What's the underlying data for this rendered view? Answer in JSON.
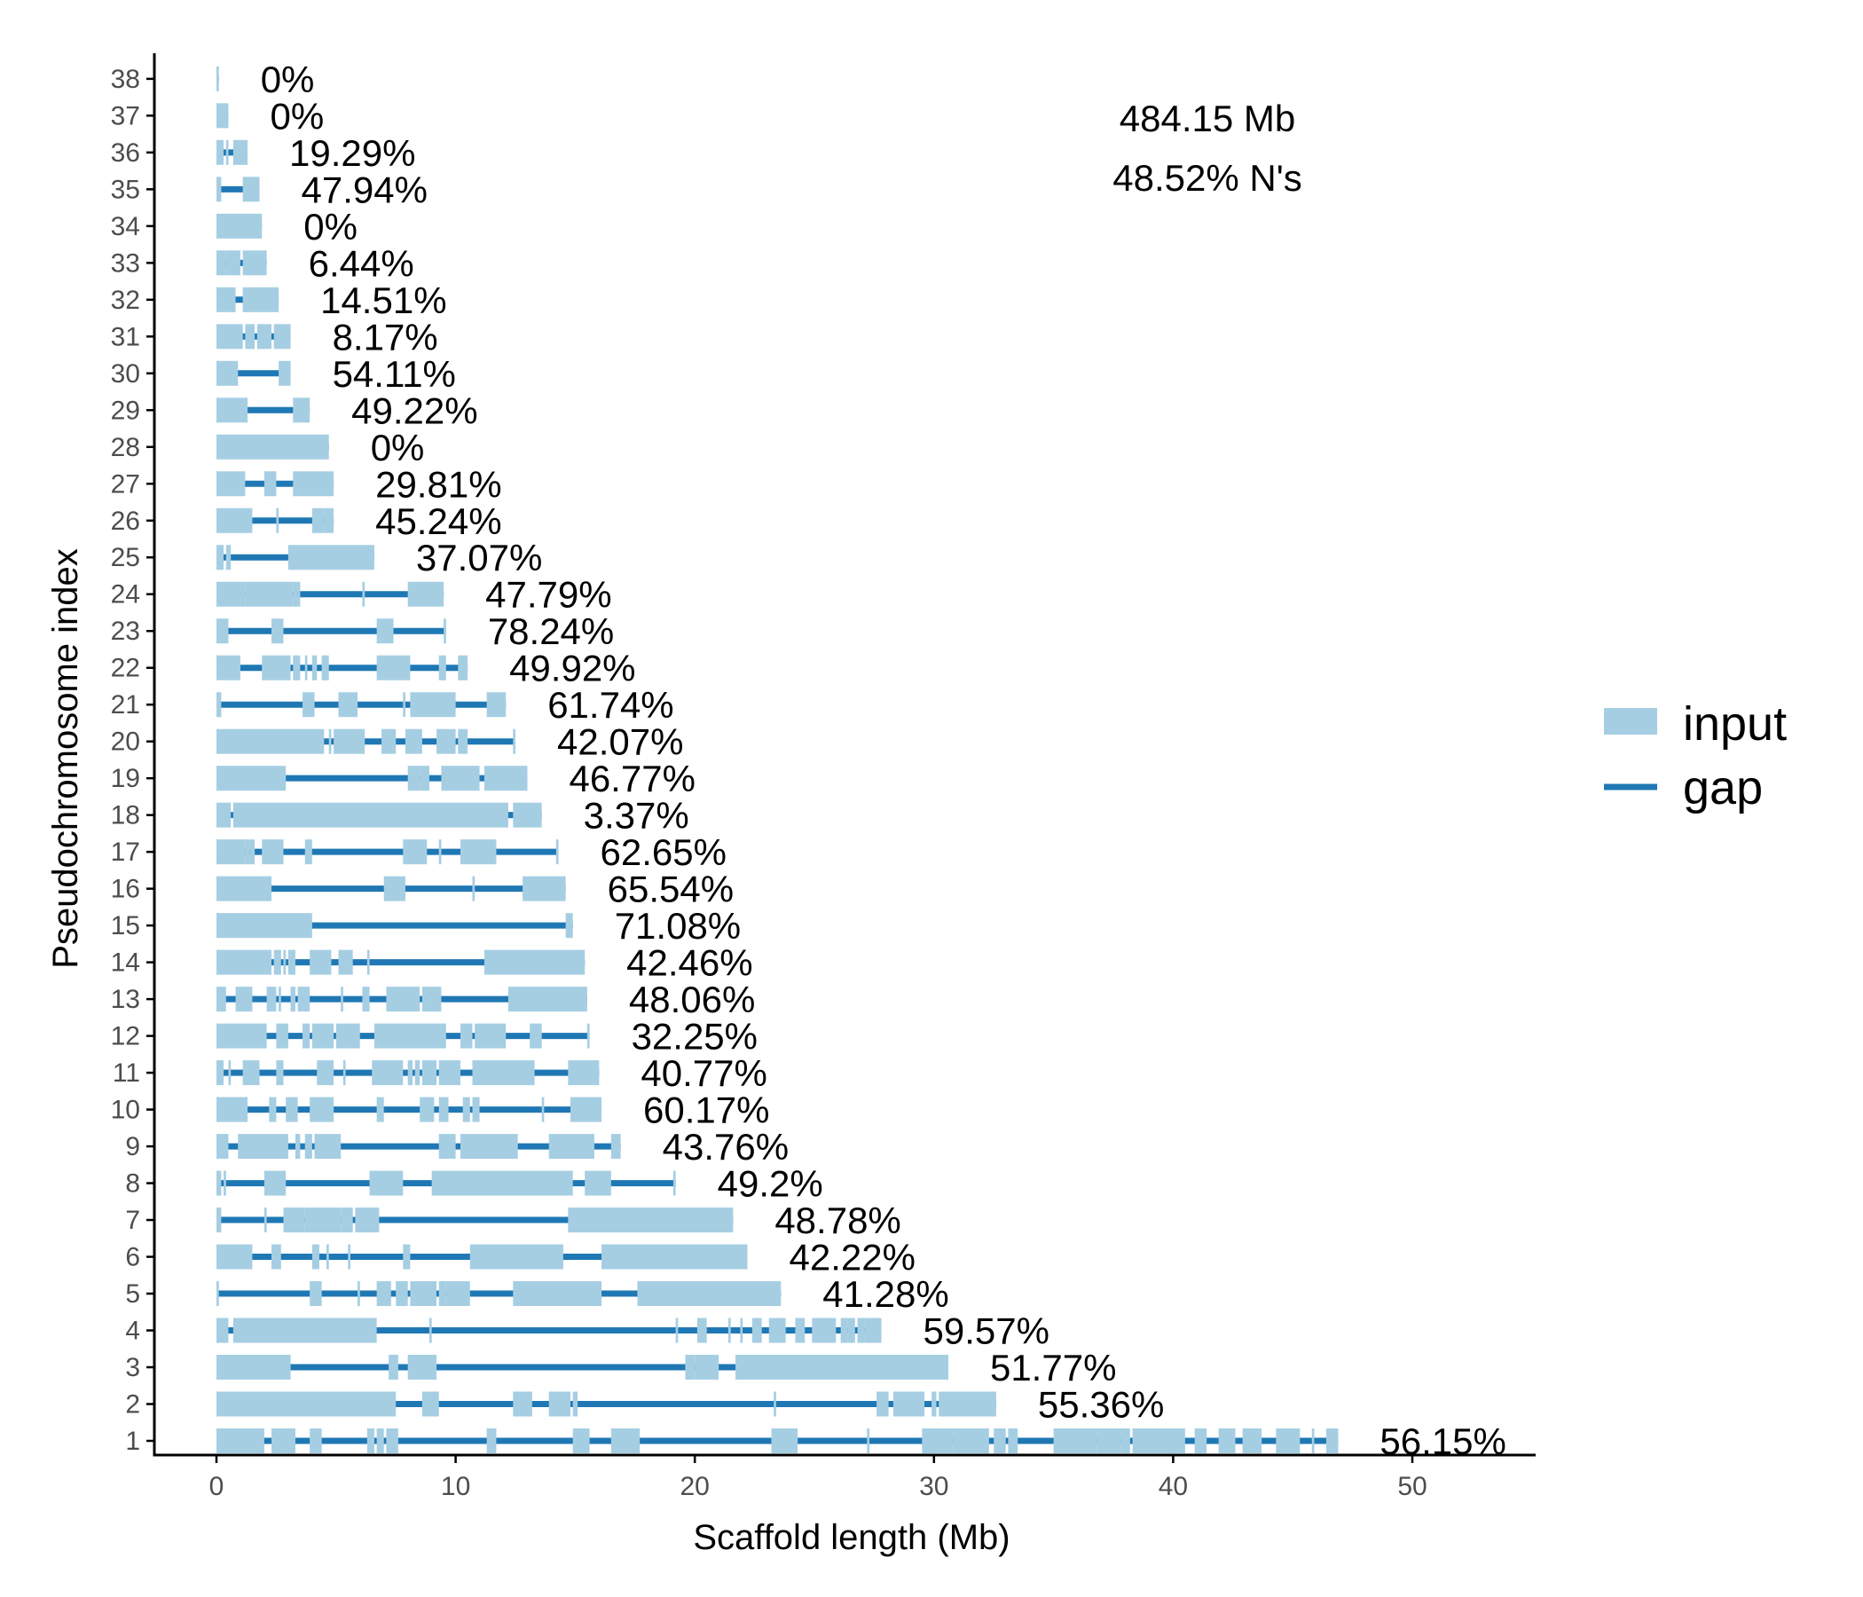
{
  "chart_data": {
    "type": "bar",
    "orientation": "horizontal",
    "xlabel": "Scaffold length (Mb)",
    "ylabel": "Pseudochromosome index",
    "xlim": [
      0,
      55
    ],
    "x_ticks": [
      0,
      10,
      20,
      30,
      40,
      50
    ],
    "grid": false,
    "legend_position": "right",
    "summary": [
      "484.15 Mb",
      "48.52% N's"
    ],
    "colors": {
      "input": "#a6cee3",
      "gap": "#1f78b4"
    },
    "series": [
      {
        "name": "input",
        "color": "#a6cee3",
        "mark": "box"
      },
      {
        "name": "gap",
        "color": "#1f78b4",
        "mark": "line"
      }
    ],
    "scaffolds": [
      {
        "index": "1",
        "length": 46.9,
        "gap_pct": "56.15%",
        "inputs": [
          [
            0,
            2
          ],
          [
            2.3,
            3.3
          ],
          [
            3.9,
            4.4
          ],
          [
            6.3,
            6.6
          ],
          [
            6.7,
            7
          ],
          [
            7.1,
            7.6
          ],
          [
            11.3,
            11.7
          ],
          [
            14.9,
            15.6
          ],
          [
            16.5,
            17.7
          ],
          [
            23.2,
            24.3
          ],
          [
            27.2,
            27.3
          ],
          [
            29.5,
            30.8
          ],
          [
            30.8,
            32.3
          ],
          [
            32.5,
            33
          ],
          [
            33.1,
            33.5
          ],
          [
            35,
            36.8
          ],
          [
            36.8,
            37.8
          ],
          [
            37.8,
            38.2
          ],
          [
            38.3,
            40.5
          ],
          [
            40.9,
            41.4
          ],
          [
            41.9,
            42.6
          ],
          [
            42.9,
            43.7
          ],
          [
            44.3,
            45.3
          ],
          [
            45.8,
            45.9
          ],
          [
            46.4,
            46.9
          ]
        ]
      },
      {
        "index": "2",
        "length": 32.6,
        "gap_pct": "55.36%",
        "inputs": [
          [
            0,
            7.5
          ],
          [
            8.6,
            9.3
          ],
          [
            12.4,
            13.2
          ],
          [
            13.9,
            14.8
          ],
          [
            14.9,
            15.1
          ],
          [
            23.3,
            23.4
          ],
          [
            27.6,
            28.1
          ],
          [
            28.3,
            29.6
          ],
          [
            29.9,
            30.1
          ],
          [
            30.2,
            32.6
          ]
        ]
      },
      {
        "index": "3",
        "length": 30.6,
        "gap_pct": "51.77%",
        "inputs": [
          [
            0,
            3.1
          ],
          [
            7.2,
            7.6
          ],
          [
            8,
            9.2
          ],
          [
            19.6,
            20
          ],
          [
            20,
            21
          ],
          [
            21.7,
            30.6
          ]
        ]
      },
      {
        "index": "4",
        "length": 27.8,
        "gap_pct": "59.57%",
        "inputs": [
          [
            0,
            0.5
          ],
          [
            0.7,
            6.7
          ],
          [
            8.9,
            9
          ],
          [
            19.2,
            19.3
          ],
          [
            20.1,
            20.5
          ],
          [
            21.4,
            21.5
          ],
          [
            21.9,
            22
          ],
          [
            22.4,
            22.8
          ],
          [
            23.1,
            23.8
          ],
          [
            24.2,
            24.6
          ],
          [
            24.9,
            25.9
          ],
          [
            26.1,
            26.4
          ],
          [
            26.4,
            26.7
          ],
          [
            26.8,
            27.1
          ],
          [
            27.1,
            27.8
          ]
        ]
      },
      {
        "index": "5",
        "length": 23.6,
        "gap_pct": "41.28%",
        "inputs": [
          [
            0,
            0.1
          ],
          [
            3.9,
            4.4
          ],
          [
            5.9,
            6
          ],
          [
            6.7,
            7.3
          ],
          [
            7.5,
            8
          ],
          [
            8.1,
            9.2
          ],
          [
            9.3,
            9.6
          ],
          [
            9.6,
            10.6
          ],
          [
            12.4,
            14.8
          ],
          [
            14.8,
            16.1
          ],
          [
            17.6,
            23.6
          ]
        ]
      },
      {
        "index": "6",
        "length": 22.2,
        "gap_pct": "42.22%",
        "inputs": [
          [
            0,
            1.5
          ],
          [
            2.3,
            2.7
          ],
          [
            4,
            4.3
          ],
          [
            4.6,
            4.7
          ],
          [
            5.5,
            5.6
          ],
          [
            7.8,
            8.1
          ],
          [
            10.6,
            14.5
          ],
          [
            16.1,
            22.2
          ]
        ]
      },
      {
        "index": "7",
        "length": 21.6,
        "gap_pct": "48.78%",
        "inputs": [
          [
            0,
            0.2
          ],
          [
            2,
            2.1
          ],
          [
            2.8,
            3.7
          ],
          [
            3.7,
            5.2
          ],
          [
            5.2,
            5.7
          ],
          [
            5.8,
            6.8
          ],
          [
            14.7,
            21.6
          ]
        ]
      },
      {
        "index": "8",
        "length": 19.2,
        "gap_pct": "49.2%",
        "inputs": [
          [
            0,
            0.2
          ],
          [
            0.3,
            0.4
          ],
          [
            2,
            2.9
          ],
          [
            6.4,
            7.8
          ],
          [
            9,
            14.9
          ],
          [
            15.4,
            16.5
          ],
          [
            19.1,
            19.2
          ]
        ]
      },
      {
        "index": "9",
        "length": 16.9,
        "gap_pct": "43.76%",
        "inputs": [
          [
            0,
            0.5
          ],
          [
            0.9,
            3
          ],
          [
            3.3,
            3.5
          ],
          [
            3.7,
            4
          ],
          [
            4.1,
            5.2
          ],
          [
            9.3,
            10
          ],
          [
            10.2,
            12.6
          ],
          [
            13.9,
            15.8
          ],
          [
            16.5,
            16.9
          ]
        ]
      },
      {
        "index": "10",
        "length": 16.1,
        "gap_pct": "60.17%",
        "inputs": [
          [
            0,
            1.3
          ],
          [
            2.2,
            2.5
          ],
          [
            2.9,
            3.4
          ],
          [
            3.9,
            4.9
          ],
          [
            6.7,
            7
          ],
          [
            8.5,
            9.1
          ],
          [
            9.3,
            9.7
          ],
          [
            10.3,
            10.6
          ],
          [
            10.7,
            11
          ],
          [
            13.6,
            13.7
          ],
          [
            14.8,
            16.1
          ]
        ]
      },
      {
        "index": "11",
        "length": 16,
        "gap_pct": "40.77%",
        "inputs": [
          [
            0,
            0.3
          ],
          [
            0.5,
            0.6
          ],
          [
            1.1,
            1.8
          ],
          [
            2.5,
            2.8
          ],
          [
            4.2,
            4.9
          ],
          [
            5.3,
            5.4
          ],
          [
            6.5,
            7.8
          ],
          [
            8,
            8.2
          ],
          [
            8.3,
            8.5
          ],
          [
            8.6,
            9.2
          ],
          [
            9.3,
            10.2
          ],
          [
            10.7,
            13.3
          ],
          [
            14.7,
            16
          ]
        ]
      },
      {
        "index": "12",
        "length": 15.6,
        "gap_pct": "32.25%",
        "inputs": [
          [
            0,
            2.1
          ],
          [
            2.5,
            3
          ],
          [
            3.6,
            3.9
          ],
          [
            4,
            4.9
          ],
          [
            5,
            6
          ],
          [
            6.6,
            9.6
          ],
          [
            10.2,
            10.7
          ],
          [
            10.8,
            12.1
          ],
          [
            13.1,
            13.6
          ],
          [
            15.5,
            15.6
          ]
        ]
      },
      {
        "index": "13",
        "length": 15.5,
        "gap_pct": "48.06%",
        "inputs": [
          [
            0,
            0.4
          ],
          [
            0.8,
            1.5
          ],
          [
            2.1,
            2.5
          ],
          [
            2.6,
            2.7
          ],
          [
            3.1,
            3.3
          ],
          [
            3.4,
            3.6
          ],
          [
            3.6,
            3.8
          ],
          [
            3.8,
            3.9
          ],
          [
            5.2,
            5.3
          ],
          [
            6.1,
            6.4
          ],
          [
            7.1,
            8.5
          ],
          [
            8.6,
            8.7
          ],
          [
            8.7,
            9.4
          ],
          [
            12.2,
            15.5
          ]
        ]
      },
      {
        "index": "14",
        "length": 15.4,
        "gap_pct": "42.46%",
        "inputs": [
          [
            0,
            2.3
          ],
          [
            2.4,
            2.7
          ],
          [
            2.8,
            2.9
          ],
          [
            3,
            3.3
          ],
          [
            3.9,
            4.8
          ],
          [
            5.1,
            5.7
          ],
          [
            6.3,
            6.4
          ],
          [
            11.2,
            15.4
          ]
        ]
      },
      {
        "index": "15",
        "length": 14.9,
        "gap_pct": "71.08%",
        "inputs": [
          [
            0,
            4
          ],
          [
            14.6,
            14.9
          ]
        ]
      },
      {
        "index": "16",
        "length": 14.6,
        "gap_pct": "65.54%",
        "inputs": [
          [
            0,
            2.3
          ],
          [
            7,
            7.9
          ],
          [
            10.7,
            10.8
          ],
          [
            12.8,
            14.6
          ]
        ]
      },
      {
        "index": "17",
        "length": 14.3,
        "gap_pct": "62.65%",
        "inputs": [
          [
            0,
            1.2
          ],
          [
            1.2,
            1.4
          ],
          [
            1.4,
            1.6
          ],
          [
            1.9,
            2.8
          ],
          [
            3.7,
            4
          ],
          [
            7.8,
            8.8
          ],
          [
            9.3,
            9.4
          ],
          [
            10.2,
            11.7
          ],
          [
            14.2,
            14.3
          ]
        ]
      },
      {
        "index": "18",
        "length": 13.6,
        "gap_pct": "3.37%",
        "inputs": [
          [
            0,
            0.6
          ],
          [
            0.7,
            12.2
          ],
          [
            12.4,
            13.6
          ]
        ]
      },
      {
        "index": "19",
        "length": 13,
        "gap_pct": "46.77%",
        "inputs": [
          [
            0,
            2.9
          ],
          [
            8,
            8.5
          ],
          [
            8.5,
            8.9
          ],
          [
            9.4,
            11
          ],
          [
            11.2,
            13
          ]
        ]
      },
      {
        "index": "20",
        "length": 12.5,
        "gap_pct": "42.07%",
        "inputs": [
          [
            0,
            4.5
          ],
          [
            4.7,
            4.8
          ],
          [
            4.9,
            6.2
          ],
          [
            6.9,
            7.5
          ],
          [
            7.9,
            8.6
          ],
          [
            9.2,
            10
          ],
          [
            10.1,
            10.5
          ],
          [
            12.4,
            12.5
          ]
        ]
      },
      {
        "index": "21",
        "length": 12.1,
        "gap_pct": "61.74%",
        "inputs": [
          [
            0,
            0.2
          ],
          [
            3.6,
            4.1
          ],
          [
            5.1,
            5.9
          ],
          [
            7.8,
            7.9
          ],
          [
            8.1,
            10
          ],
          [
            11.3,
            12.1
          ]
        ]
      },
      {
        "index": "22",
        "length": 10.5,
        "gap_pct": "49.92%",
        "inputs": [
          [
            0,
            1
          ],
          [
            1.9,
            3.1
          ],
          [
            3.2,
            3.5
          ],
          [
            3.7,
            3.8
          ],
          [
            4,
            4.2
          ],
          [
            4.4,
            4.7
          ],
          [
            6.7,
            8.1
          ],
          [
            9.3,
            9.6
          ],
          [
            10.1,
            10.5
          ]
        ]
      },
      {
        "index": "23",
        "length": 9.6,
        "gap_pct": "78.24%",
        "inputs": [
          [
            0,
            0.5
          ],
          [
            2.3,
            2.8
          ],
          [
            6.7,
            7.4
          ],
          [
            9.5,
            9.6
          ]
        ]
      },
      {
        "index": "24",
        "length": 9.5,
        "gap_pct": "47.79%",
        "inputs": [
          [
            0,
            1.2
          ],
          [
            1.2,
            3.2
          ],
          [
            3.2,
            3.4
          ],
          [
            3.4,
            3.5
          ],
          [
            6.1,
            6.2
          ],
          [
            8,
            9.5
          ]
        ]
      },
      {
        "index": "25",
        "length": 6.6,
        "gap_pct": "37.07%",
        "inputs": [
          [
            0,
            0.3
          ],
          [
            0.4,
            0.6
          ],
          [
            3,
            6.6
          ]
        ]
      },
      {
        "index": "26",
        "length": 4.9,
        "gap_pct": "45.24%",
        "inputs": [
          [
            0,
            1.5
          ],
          [
            2.5,
            2.6
          ],
          [
            4,
            4.5
          ],
          [
            4.5,
            4.9
          ]
        ]
      },
      {
        "index": "27",
        "length": 4.9,
        "gap_pct": "29.81%",
        "inputs": [
          [
            0,
            1.2
          ],
          [
            2,
            2.5
          ],
          [
            3.2,
            4.9
          ]
        ]
      },
      {
        "index": "28",
        "length": 4.7,
        "gap_pct": "0%",
        "inputs": [
          [
            0,
            4.7
          ]
        ]
      },
      {
        "index": "29",
        "length": 3.9,
        "gap_pct": "49.22%",
        "inputs": [
          [
            0,
            1.3
          ],
          [
            3.2,
            3.9
          ]
        ]
      },
      {
        "index": "30",
        "length": 3.1,
        "gap_pct": "54.11%",
        "inputs": [
          [
            0,
            0.9
          ],
          [
            2.6,
            3.1
          ]
        ]
      },
      {
        "index": "31",
        "length": 3.1,
        "gap_pct": "8.17%",
        "inputs": [
          [
            0,
            1.1
          ],
          [
            1.2,
            1.6
          ],
          [
            1.7,
            2.3
          ],
          [
            2.4,
            3.1
          ]
        ]
      },
      {
        "index": "32",
        "length": 2.6,
        "gap_pct": "14.51%",
        "inputs": [
          [
            0,
            0.8
          ],
          [
            1.1,
            2.6
          ]
        ]
      },
      {
        "index": "33",
        "length": 2.1,
        "gap_pct": "6.44%",
        "inputs": [
          [
            0,
            0.4
          ],
          [
            0.4,
            1
          ],
          [
            1.1,
            2.1
          ]
        ]
      },
      {
        "index": "34",
        "length": 1.9,
        "gap_pct": "0%",
        "inputs": [
          [
            0,
            1.9
          ]
        ]
      },
      {
        "index": "35",
        "length": 1.8,
        "gap_pct": "47.94%",
        "inputs": [
          [
            0,
            0.2
          ],
          [
            1.1,
            1.8
          ]
        ]
      },
      {
        "index": "36",
        "length": 1.3,
        "gap_pct": "19.29%",
        "inputs": [
          [
            0,
            0.3
          ],
          [
            0.4,
            0.5
          ],
          [
            0.7,
            1.3
          ]
        ]
      },
      {
        "index": "37",
        "length": 0.5,
        "gap_pct": "0%",
        "inputs": [
          [
            0,
            0.5
          ]
        ]
      },
      {
        "index": "38",
        "length": 0.1,
        "gap_pct": "0%",
        "inputs": [
          [
            0,
            0.1
          ]
        ]
      }
    ]
  }
}
